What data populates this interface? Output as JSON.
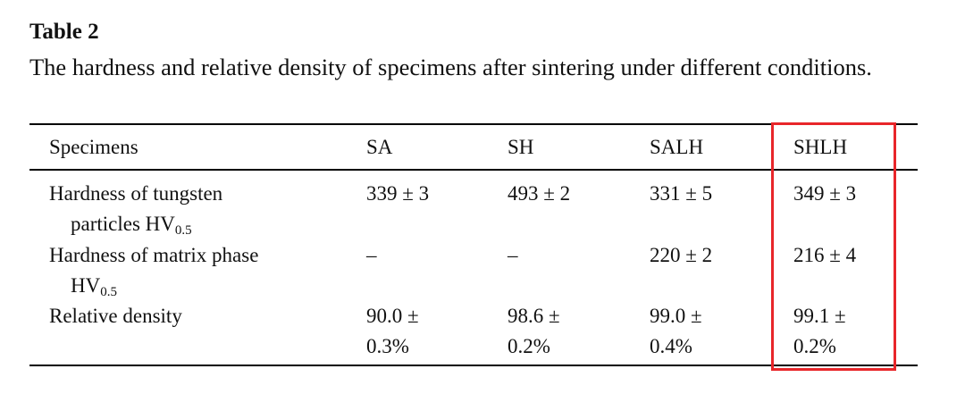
{
  "header": {
    "label": "Table 2",
    "caption": "The hardness and relative density of specimens after sintering under different conditions."
  },
  "table": {
    "columns": [
      "Specimens",
      "SA",
      "SH",
      "SALH",
      "SHLH"
    ],
    "rows": [
      {
        "label": [
          "Hardness of tungsten",
          "particles HV"
        ],
        "sub": "0.5",
        "cells": [
          "339 ± 3",
          "493 ± 2",
          "331 ± 5",
          "349 ± 3"
        ]
      },
      {
        "label": [
          "Hardness of matrix phase",
          "HV"
        ],
        "sub": "0.5",
        "cells": [
          "–",
          "–",
          "220 ± 2",
          "216 ± 4"
        ]
      },
      {
        "label": [
          "Relative density"
        ],
        "cells": [
          [
            "90.0 ±",
            "0.3%"
          ],
          [
            "98.6 ±",
            "0.2%"
          ],
          [
            "99.0 ±",
            "0.4%"
          ],
          [
            "99.1 ±",
            "0.2%"
          ]
        ]
      }
    ]
  }
}
